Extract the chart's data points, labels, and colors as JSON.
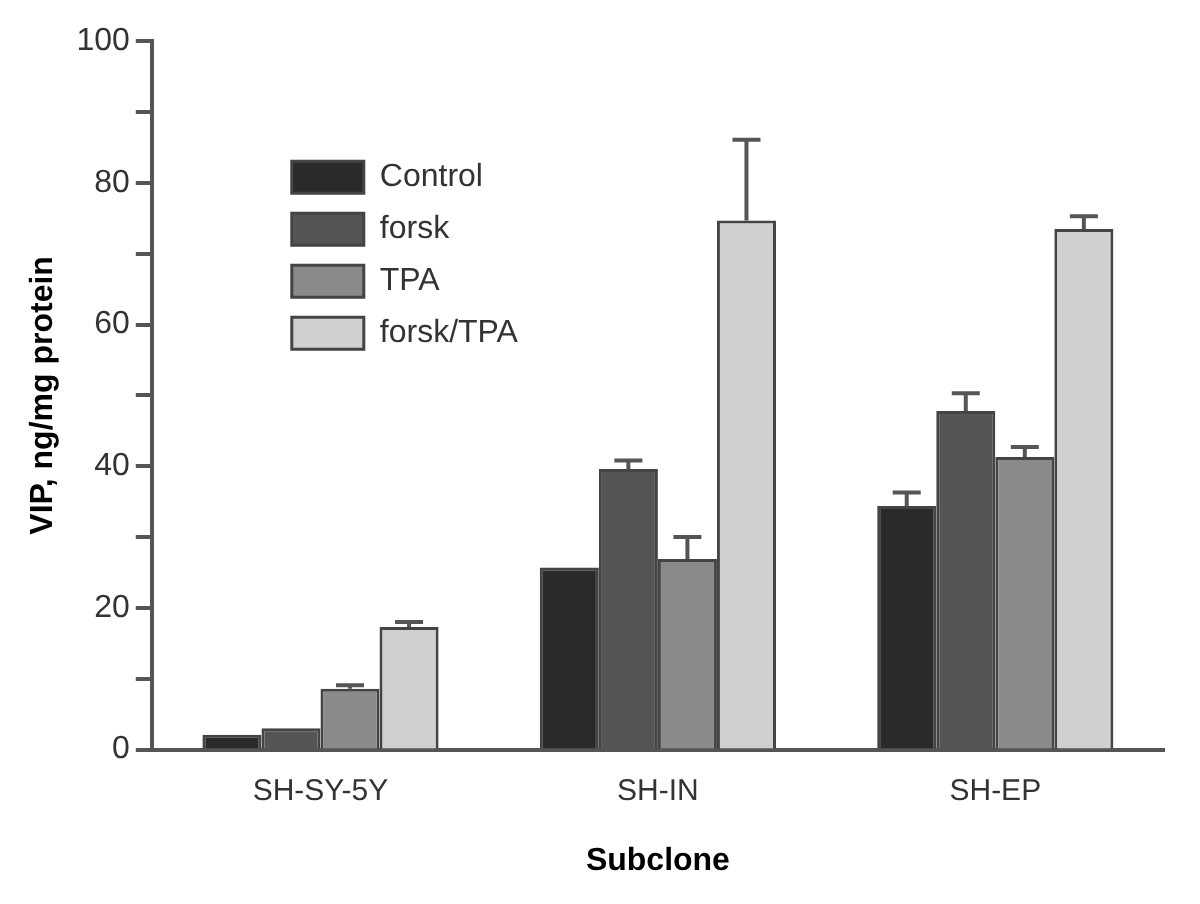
{
  "chart_data": {
    "type": "bar",
    "xlabel": "Subclone",
    "ylabel": "VIP, ng/mg protein",
    "categories": [
      "SH-SY-5Y",
      "SH-IN",
      "SH-EP"
    ],
    "series": [
      {
        "name": "Control",
        "color": "#2a2a2a",
        "values": [
          2.1,
          25.7,
          34.4
        ],
        "errors": [
          null,
          null,
          1.9
        ]
      },
      {
        "name": "forsk",
        "color": "#555555",
        "values": [
          3.0,
          39.6,
          47.8
        ],
        "errors": [
          null,
          1.2,
          2.5
        ]
      },
      {
        "name": "TPA",
        "color": "#8a8a8a",
        "values": [
          8.6,
          26.9,
          41.3
        ],
        "errors": [
          0.5,
          3.1,
          1.4
        ]
      },
      {
        "name": "forsk/TPA",
        "color": "#d0d0d0",
        "values": [
          17.3,
          74.7,
          73.5
        ],
        "errors": [
          0.7,
          11.4,
          1.8
        ]
      }
    ],
    "ylim": [
      0,
      100
    ],
    "yticks": [
      0,
      {
        "value": 10,
        "label": null
      },
      20,
      {
        "value": 30,
        "label": null
      },
      40,
      {
        "value": 50,
        "label": null
      },
      60,
      {
        "value": 70,
        "label": null
      },
      80,
      {
        "value": 90,
        "label": null
      },
      100
    ],
    "grid": false,
    "legend": "top left"
  }
}
